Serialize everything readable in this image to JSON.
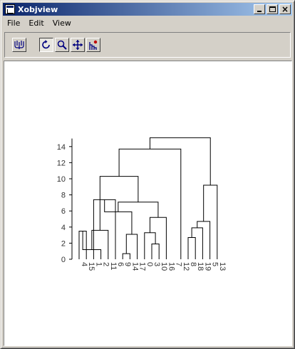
{
  "window": {
    "title": "Xobjview"
  },
  "menu": {
    "items": [
      "File",
      "Edit",
      "View"
    ]
  },
  "toolbar": {
    "tools": [
      {
        "name": "plot-type-icon"
      },
      {
        "name": "rotate-icon"
      },
      {
        "name": "zoom-icon"
      },
      {
        "name": "pan-icon"
      },
      {
        "name": "data-cursor-icon"
      }
    ]
  },
  "colors": {
    "titlebar_start": "#0a246a",
    "titlebar_end": "#a6caf0",
    "chrome": "#d4d0c8",
    "plot_line": "#000000"
  },
  "chart_data": {
    "type": "dendrogram",
    "title": "",
    "xlabel": "",
    "ylabel": "",
    "ylim": [
      0,
      15
    ],
    "yticks": [
      0,
      2,
      4,
      6,
      8,
      10,
      12,
      14
    ],
    "leaf_order": [
      "4",
      "15",
      "1",
      "2",
      "11",
      "6",
      "9",
      "14",
      "17",
      "0",
      "3",
      "10",
      "16",
      "7",
      "12",
      "8",
      "18",
      "19",
      "5",
      "13"
    ],
    "merges": [
      {
        "a": 0,
        "b": 1,
        "height": 3.5
      },
      {
        "a": 1,
        "b": 3,
        "height": 1.2
      },
      {
        "a": 6,
        "b": 7,
        "height": 0.7
      },
      {
        "a": 10,
        "b": 11,
        "height": 1.9
      },
      {
        "a": 3,
        "b": 4,
        "height": 3.6
      },
      {
        "a": 7,
        "b": 8,
        "height": 3.1
      },
      {
        "a": 9,
        "b": 10,
        "height": 3.3
      },
      {
        "a": 15,
        "b": 16,
        "height": 2.7
      },
      {
        "a": 2,
        "b": 5,
        "height": 7.4
      },
      {
        "a": 5,
        "b": 6,
        "height": 5.9
      },
      {
        "a": 11,
        "b": 12,
        "height": 5.2
      },
      {
        "a": 16,
        "b": 17,
        "height": 3.9
      },
      {
        "a": 17,
        "b": 18,
        "height": 4.7
      },
      {
        "a": 18,
        "b": 19,
        "height": 9.2
      },
      {
        "a": 6,
        "b": 11,
        "height": 7.1
      },
      {
        "a": 1,
        "b": 11,
        "height": 10.3
      },
      {
        "a": 1,
        "b": 14,
        "height": 13.7
      },
      {
        "a": 14,
        "b": 19,
        "height": 15.1
      }
    ],
    "structure": "x=4 15 leaves; links drawn as U-shapes"
  }
}
